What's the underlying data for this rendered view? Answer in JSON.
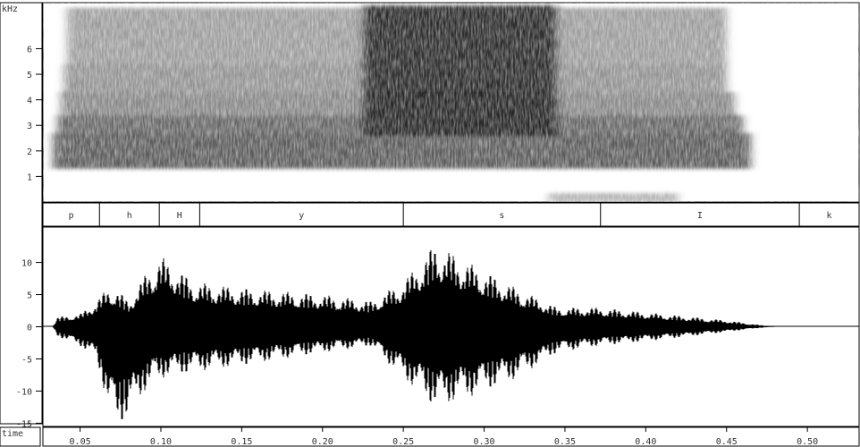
{
  "chart_data": [
    {
      "type": "heatmap",
      "title": "",
      "ylabel": "kHz",
      "xlabel": "",
      "ylim": [
        0,
        7.8
      ],
      "xlim": [
        0.027,
        0.532
      ],
      "yticks": [
        1,
        2,
        3,
        4,
        5,
        6
      ],
      "ytick_labels": [
        "1",
        "2",
        "3",
        "4",
        "5",
        "6"
      ],
      "bands": [
        {
          "name": "",
          "t0": 0.033,
          "t1": 0.465,
          "khz": [
            1.3,
            2.7
          ],
          "peak": 0.75
        },
        {
          "name": "",
          "t0": 0.036,
          "t1": 0.46,
          "khz": [
            2.7,
            3.4
          ],
          "peak": 0.7
        },
        {
          "name": "",
          "t0": 0.038,
          "t1": 0.455,
          "khz": [
            3.4,
            4.3
          ],
          "peak": 0.55
        },
        {
          "name": "",
          "t0": 0.04,
          "t1": 0.45,
          "khz": [
            4.3,
            5.4
          ],
          "peak": 0.5
        },
        {
          "name": "",
          "t0": 0.042,
          "t1": 0.45,
          "khz": [
            5.4,
            7.6
          ],
          "peak": 0.45
        },
        {
          "name": "",
          "t0": 0.225,
          "t1": 0.345,
          "khz": [
            2.6,
            7.7
          ],
          "peak": 0.9
        },
        {
          "name": "",
          "t0": 0.34,
          "t1": 0.42,
          "khz": [
            0,
            0.35
          ],
          "peak": 0.35
        }
      ]
    },
    {
      "type": "table",
      "title": "",
      "segments": [
        {
          "label": "p",
          "start": 0.027,
          "end": 0.062
        },
        {
          "label": "h",
          "start": 0.062,
          "end": 0.099
        },
        {
          "label": "H",
          "start": 0.099,
          "end": 0.124
        },
        {
          "label": "y",
          "start": 0.124,
          "end": 0.25
        },
        {
          "label": "s",
          "start": 0.25,
          "end": 0.372
        },
        {
          "label": "I",
          "start": 0.372,
          "end": 0.495
        },
        {
          "label": "k",
          "start": 0.495,
          "end": 0.532
        }
      ]
    },
    {
      "type": "line",
      "title": "",
      "xlabel": "time",
      "ylabel": "",
      "xlim": [
        0.027,
        0.532
      ],
      "ylim": [
        -15.5,
        15.5
      ],
      "yticks": [
        10,
        5,
        0,
        -5,
        -10,
        -15
      ],
      "ytick_labels": [
        "10",
        "5",
        "0",
        "-5",
        "-10",
        "-15"
      ],
      "xticks": [
        0.05,
        0.1,
        0.15,
        0.2,
        0.25,
        0.3,
        0.35,
        0.4,
        0.45,
        0.5
      ],
      "xtick_labels": [
        "0.05",
        "0.10",
        "0.15",
        "0.20",
        "0.25",
        "0.30",
        "0.35",
        "0.40",
        "0.45",
        "0.50"
      ],
      "envelope": {
        "t": [
          0.027,
          0.033,
          0.036,
          0.05,
          0.06,
          0.067,
          0.072,
          0.08,
          0.09,
          0.1,
          0.12,
          0.15,
          0.2,
          0.23,
          0.25,
          0.27,
          0.29,
          0.32,
          0.345,
          0.37,
          0.41,
          0.45,
          0.47,
          0.48,
          0.532
        ],
        "max": [
          0,
          0,
          1.5,
          2,
          4,
          6,
          6,
          4,
          8,
          11,
          7,
          6,
          5,
          4,
          7,
          13,
          10,
          6,
          3,
          3,
          2,
          1,
          0.3,
          0,
          0
        ],
        "min": [
          0,
          0,
          -1.5,
          -3,
          -5,
          -12,
          -15.5,
          -14,
          -10,
          -8,
          -7,
          -6,
          -4,
          -3,
          -8,
          -12.5,
          -11,
          -8,
          -4,
          -3,
          -2,
          -0.8,
          -0.2,
          0,
          0
        ]
      }
    }
  ]
}
